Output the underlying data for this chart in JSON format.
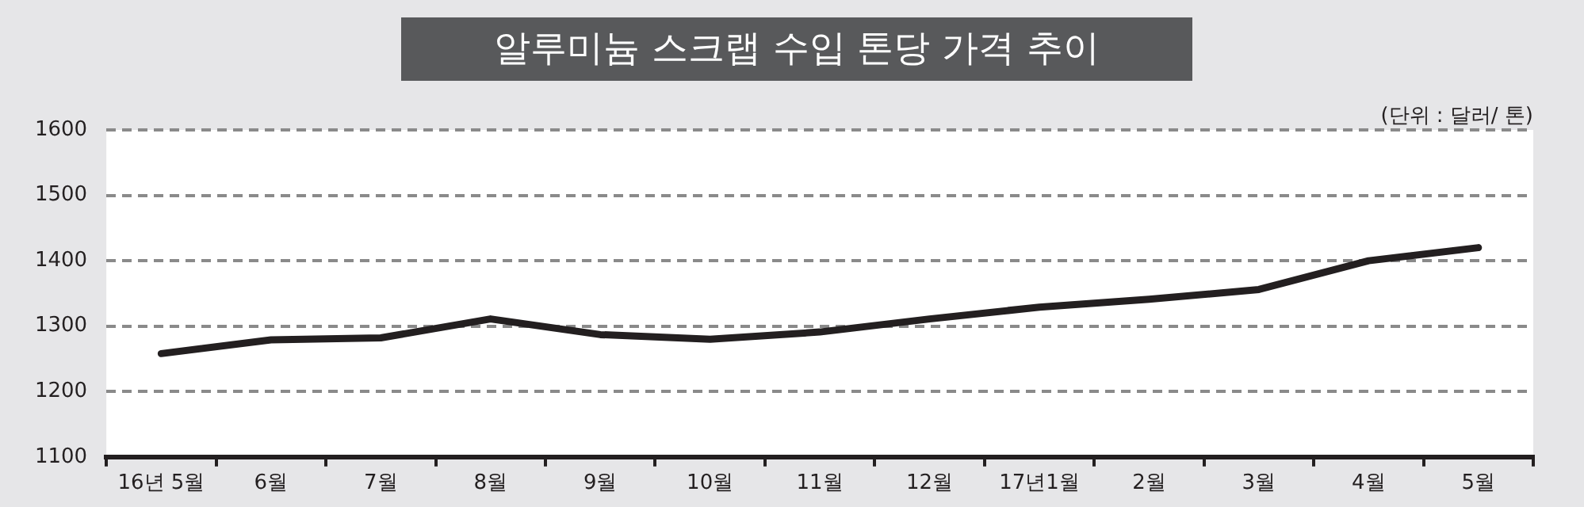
{
  "chart_data": {
    "type": "line",
    "title": "알루미늄 스크랩 수입 톤당 가격 추이",
    "annotations": [
      "(단위 : 달러/ 톤)"
    ],
    "categories": [
      "16년 5월",
      "6월",
      "7월",
      "8월",
      "9월",
      "10월",
      "11월",
      "12월",
      "17년1월",
      "2월",
      "3월",
      "4월",
      "5월"
    ],
    "series": [
      {
        "color": "#231f20",
        "values": [
          1258,
          1279,
          1282,
          1311,
          1287,
          1280,
          1291,
          1311,
          1329,
          1341,
          1356,
          1400,
          1420
        ]
      }
    ],
    "ylim": [
      1100,
      1600
    ],
    "yticks": [
      1100,
      1200,
      1300,
      1400,
      1500,
      1600
    ],
    "grid": "y",
    "legend": false,
    "marker": "none",
    "line_style": "solid"
  }
}
